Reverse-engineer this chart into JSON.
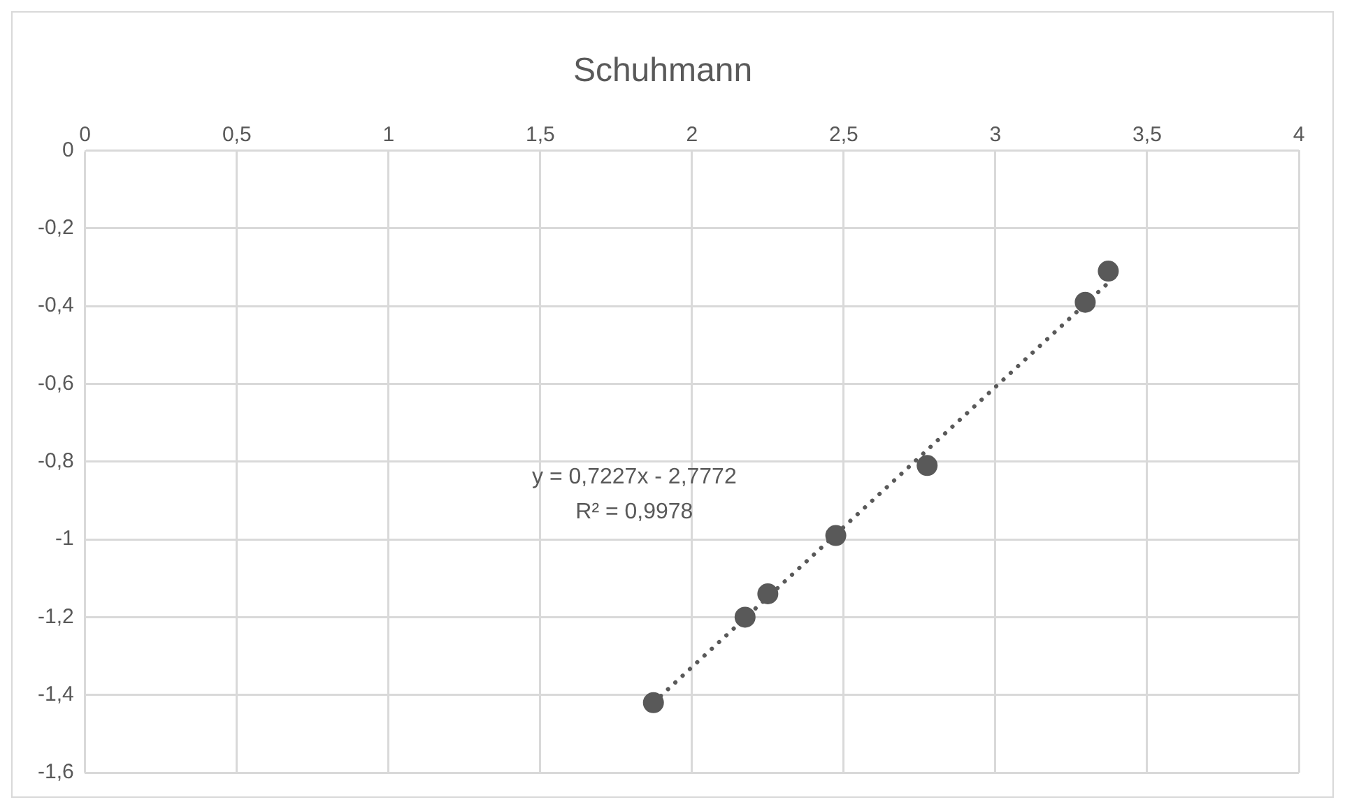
{
  "chart_data": {
    "type": "scatter",
    "title": "Schuhmann",
    "xlim": [
      0,
      4
    ],
    "xticks": [
      0,
      {
        "value": 0.5,
        "label": "0,5"
      },
      1,
      {
        "value": 1.5,
        "label": "1,5"
      },
      2,
      {
        "value": 2.5,
        "label": "2,5"
      },
      3,
      {
        "value": 3.5,
        "label": "3,5"
      },
      4
    ],
    "ylim": [
      -1.6,
      0
    ],
    "yticks": [
      0,
      {
        "value": -0.2,
        "label": "-0,2"
      },
      {
        "value": -0.4,
        "label": "-0,4"
      },
      {
        "value": -0.6,
        "label": "-0,6"
      },
      {
        "value": -0.8,
        "label": "-0,8"
      },
      -1,
      {
        "value": -1.2,
        "label": "-1,2"
      },
      {
        "value": -1.4,
        "label": "-1,4"
      },
      {
        "value": -1.6,
        "label": "-1,6"
      }
    ],
    "grid": true,
    "marker": "circle",
    "series": [
      {
        "type": "scatter",
        "color": "#595959",
        "x": [
          1.873,
          2.175,
          2.25,
          2.474,
          2.775,
          3.296,
          3.372
        ],
        "values": [
          -1.42,
          -1.2,
          -1.14,
          -0.99,
          -0.81,
          -0.39,
          -0.31
        ]
      },
      {
        "type": "line",
        "color": "#595959",
        "x": [
          1.873,
          3.372
        ],
        "values": [
          -1.42,
          -0.34
        ],
        "line_style": "dotted",
        "marker": "none"
      }
    ],
    "annotations": [
      "y = 0,7227x - 2,7772",
      "R² = 0,9978"
    ]
  }
}
